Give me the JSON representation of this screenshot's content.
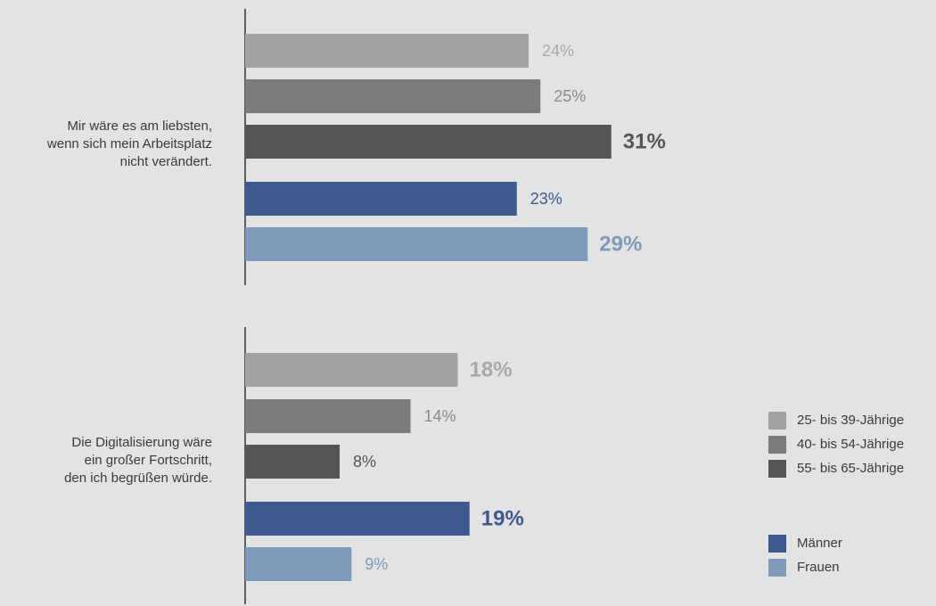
{
  "chart_data": {
    "type": "bar",
    "orientation": "horizontal",
    "unit": "%",
    "xlim": [
      0,
      45
    ],
    "grid": false,
    "legend_position": "bottom-right",
    "categories": [
      "Mir wäre es am liebsten,\nwenn sich mein Arbeitsplatz\nnicht verändert.",
      "Die Digitalisierung wäre\nein großer Fortschritt,\nden ich begrüßen würde."
    ],
    "series": [
      {
        "name": "25- bis 39-Jährige",
        "values": [
          24,
          18
        ],
        "value_labels": [
          "24%",
          "18%"
        ],
        "emphasized": [
          false,
          true
        ],
        "color": "#a3a3a4",
        "label_color": "#a9a9aa"
      },
      {
        "name": "40- bis 54-Jährige",
        "values": [
          25,
          14
        ],
        "value_labels": [
          "25%",
          "14%"
        ],
        "emphasized": [
          false,
          false
        ],
        "color": "#7c7c7e",
        "label_color": "#8a8a8b"
      },
      {
        "name": "55- bis 65-Jährige",
        "values": [
          31,
          8
        ],
        "value_labels": [
          "31%",
          "8%"
        ],
        "emphasized": [
          true,
          false
        ],
        "color": "#555557",
        "label_color": "#555557"
      },
      {
        "name": "Männer",
        "values": [
          23,
          19
        ],
        "value_labels": [
          "23%",
          "19%"
        ],
        "emphasized": [
          false,
          true
        ],
        "color": "#3d5a8e",
        "label_color": "#3d5a8e"
      },
      {
        "name": "Frauen",
        "values": [
          29,
          9
        ],
        "value_labels": [
          "29%",
          "9%"
        ],
        "emphasized": [
          true,
          false
        ],
        "color": "#7f9aba",
        "label_color": "#7f9aba"
      }
    ],
    "legend_groups": [
      [
        "25- bis 39-Jährige",
        "40- bis 54-Jährige",
        "55- bis 65-Jährige"
      ],
      [
        "Männer",
        "Frauen"
      ]
    ]
  }
}
